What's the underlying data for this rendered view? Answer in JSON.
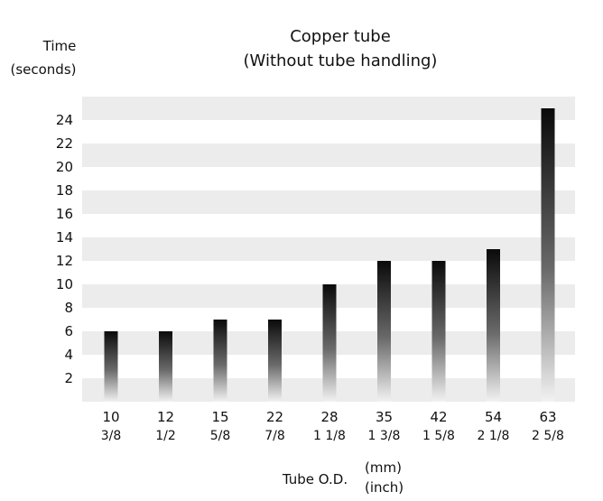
{
  "chart_data": {
    "type": "bar",
    "title": "Copper tube",
    "subtitle": "(Without tube handling)",
    "ylabel": [
      "Time",
      "(seconds)"
    ],
    "xlabel": "Tube O.D.",
    "xunits": [
      "(mm)",
      "(inch)"
    ],
    "categories": [
      "10",
      "12",
      "15",
      "22",
      "28",
      "35",
      "42",
      "54",
      "63"
    ],
    "categories_inch": [
      "3/8",
      "1/2",
      "5/8",
      "7/8",
      "1 1/8",
      "1 3/8",
      "1 5/8",
      "2 1/8",
      "2 5/8"
    ],
    "values": [
      6,
      6,
      7,
      7,
      10,
      12,
      12,
      13,
      25
    ],
    "yticks": [
      2,
      4,
      6,
      8,
      10,
      12,
      14,
      16,
      18,
      20,
      22,
      24
    ],
    "ylim": [
      0,
      26
    ],
    "grid": "alternating horizontal bands",
    "legend": "none"
  }
}
